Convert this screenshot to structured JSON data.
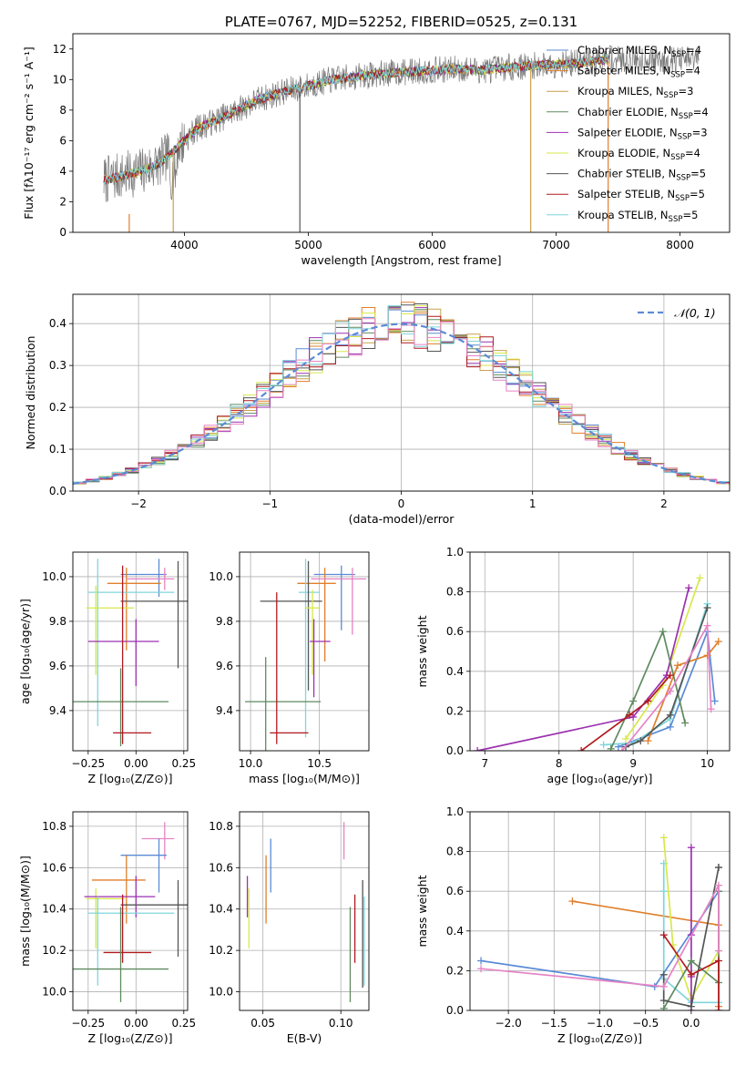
{
  "chart_data": [
    {
      "id": "spectrum",
      "type": "line",
      "title": "PLATE=0767, MJD=52252, FIBERID=0525, z=0.131",
      "xlabel": "wavelength [Angstrom, rest frame]",
      "ylabel": "Flux [fλ10⁻¹⁷ erg cm⁻² s⁻¹ A⁻¹]",
      "xlim": [
        3100,
        8400
      ],
      "ylim": [
        0,
        13
      ],
      "xticks": [
        4000,
        5000,
        6000,
        7000,
        8000
      ],
      "yticks": [
        0,
        2,
        4,
        6,
        8,
        10,
        12
      ],
      "grid": false,
      "legend_position": "right",
      "continuum": {
        "x": [
          3350,
          3500,
          3650,
          3800,
          3950,
          4100,
          4250,
          4400,
          4600,
          4800,
          5000,
          5200,
          5400,
          5600,
          5800,
          6000,
          6200,
          6400,
          6600,
          6800,
          7000,
          7200,
          7400
        ],
        "y": [
          3.4,
          3.7,
          4.0,
          4.5,
          5.6,
          6.8,
          7.3,
          7.9,
          8.7,
          9.2,
          9.6,
          10.0,
          10.2,
          10.4,
          10.5,
          10.6,
          10.7,
          10.6,
          10.8,
          10.9,
          11.0,
          11.1,
          11.3
        ]
      },
      "data_range": [
        3350,
        8150
      ],
      "legend": [
        {
          "label": "Chabrier MILES, N",
          "sub": "SSP",
          "suffix": "=4",
          "color": "#5b8bd6"
        },
        {
          "label": "Salpeter MILES, N",
          "sub": "SSP",
          "suffix": "=4",
          "color": "#e07f2b"
        },
        {
          "label": "Kroupa MILES, N",
          "sub": "SSP",
          "suffix": "=3",
          "color": "#c9a14a"
        },
        {
          "label": "Chabrier ELODIE, N",
          "sub": "SSP",
          "suffix": "=4",
          "color": "#5f8a5f"
        },
        {
          "label": "Salpeter ELODIE, N",
          "sub": "SSP",
          "suffix": "=3",
          "color": "#9b30b0"
        },
        {
          "label": "Kroupa ELODIE, N",
          "sub": "SSP",
          "suffix": "=4",
          "color": "#d7e84a"
        },
        {
          "label": "Chabrier STELIB, N",
          "sub": "SSP",
          "suffix": "=5",
          "color": "#555555"
        },
        {
          "label": "Salpeter STELIB, N",
          "sub": "SSP",
          "suffix": "=5",
          "color": "#b0191f"
        },
        {
          "label": "Kroupa STELIB, N",
          "sub": "SSP",
          "suffix": "=5",
          "color": "#7fd6dc"
        }
      ]
    },
    {
      "id": "residuals",
      "type": "histogram",
      "xlabel": "(data-model)/error",
      "ylabel": "Normed distribution",
      "xlim": [
        -2.5,
        2.5
      ],
      "ylim": [
        0,
        0.47
      ],
      "xticks": [
        -2,
        -1,
        0,
        1,
        2
      ],
      "yticks": [
        0.0,
        0.1,
        0.2,
        0.3,
        0.4
      ],
      "grid": true,
      "legend_position": "top-right",
      "reference": {
        "label": "𝒩(0, 1)",
        "color": "#5b8bd6",
        "style": "dashed",
        "mu": 0,
        "sigma": 1
      },
      "bin_width": 0.1
    },
    {
      "id": "age-vs-Z",
      "type": "errorbar",
      "xlabel": "Z [log₁₀(Z/Z⊙)]",
      "ylabel": "age  [log₁₀(age/yr)]",
      "xlim": [
        -0.33,
        0.27
      ],
      "ylim": [
        9.22,
        10.11
      ],
      "xticks": [
        -0.25,
        0.0,
        0.25
      ],
      "xticklabels": [
        "−0.25",
        "0.00",
        "0.25"
      ],
      "yticks": [
        9.4,
        9.6,
        9.8,
        10.0
      ],
      "grid": true,
      "points": [
        {
          "color": "#5b8bd6",
          "x": 0.12,
          "xerr": [
            0.2,
            0.04
          ],
          "y": 10.01,
          "yerr": [
            0.1,
            0.07
          ]
        },
        {
          "color": "#e07f2b",
          "x": -0.05,
          "xerr": [
            0.1,
            0.18
          ],
          "y": 9.97,
          "yerr": [
            0.3,
            0.07
          ]
        },
        {
          "color": "#e683c5",
          "x": 0.15,
          "xerr": [
            0.2,
            0.05
          ],
          "y": 9.99,
          "yerr": [
            0.05,
            0.05
          ]
        },
        {
          "color": "#7fd6dc",
          "x": -0.2,
          "xerr": [
            0.05,
            0.4
          ],
          "y": 9.93,
          "yerr": [
            0.6,
            0.15
          ]
        },
        {
          "color": "#555555",
          "x": 0.22,
          "xerr": [
            0.3,
            0.05
          ],
          "y": 9.89,
          "yerr": [
            0.3,
            0.18
          ]
        },
        {
          "color": "#d7e84a",
          "x": -0.21,
          "xerr": [
            0.05,
            0.2
          ],
          "y": 9.86,
          "yerr": [
            0.3,
            0.1
          ]
        },
        {
          "color": "#9b30b0",
          "x": 0.0,
          "xerr": [
            0.25,
            0.12
          ],
          "y": 9.71,
          "yerr": [
            0.2,
            0.1
          ]
        },
        {
          "color": "#5f8a5f",
          "x": -0.08,
          "xerr": [
            0.26,
            0.25
          ],
          "y": 9.44,
          "yerr": [
            0.2,
            0.15
          ]
        },
        {
          "color": "#b0191f",
          "x": -0.07,
          "xerr": [
            0.05,
            0.15
          ],
          "y": 9.3,
          "yerr": [
            0.05,
            0.75
          ]
        }
      ]
    },
    {
      "id": "age-vs-mass",
      "type": "errorbar",
      "xlabel": "mass [log₁₀(M/M⊙)]",
      "ylabel": "",
      "xlim": [
        9.92,
        10.86
      ],
      "ylim": [
        9.22,
        10.11
      ],
      "xticks": [
        10.0,
        10.5
      ],
      "xticklabels": [
        "10.0",
        "10.5"
      ],
      "yticks": [
        9.4,
        9.6,
        9.8,
        10.0
      ],
      "grid": true,
      "points": [
        {
          "color": "#5b8bd6",
          "x": 10.66,
          "xerr": [
            0.2,
            0.1
          ],
          "y": 10.01,
          "yerr": [
            0.25,
            0.04
          ]
        },
        {
          "color": "#e07f2b",
          "x": 10.54,
          "xerr": [
            0.2,
            0.08
          ],
          "y": 9.97,
          "yerr": [
            0.35,
            0.07
          ]
        },
        {
          "color": "#e683c5",
          "x": 10.74,
          "xerr": [
            0.3,
            0.1
          ],
          "y": 9.99,
          "yerr": [
            0.25,
            0.05
          ]
        },
        {
          "color": "#7fd6dc",
          "x": 10.4,
          "xerr": [
            0.05,
            0.1
          ],
          "y": 9.93,
          "yerr": [
            0.65,
            0.15
          ]
        },
        {
          "color": "#555555",
          "x": 10.42,
          "xerr": [
            0.35,
            0.1
          ],
          "y": 9.89,
          "yerr": [
            0.4,
            0.18
          ]
        },
        {
          "color": "#d7e84a",
          "x": 10.45,
          "xerr": [
            0.05,
            0.05
          ],
          "y": 9.86,
          "yerr": [
            0.3,
            0.08
          ]
        },
        {
          "color": "#9b30b0",
          "x": 10.46,
          "xerr": [
            0.03,
            0.12
          ],
          "y": 9.71,
          "yerr": [
            0.25,
            0.1
          ]
        },
        {
          "color": "#5f8a5f",
          "x": 10.11,
          "xerr": [
            0.15,
            0.4
          ],
          "y": 9.44,
          "yerr": [
            0.35,
            0.2
          ]
        },
        {
          "color": "#b0191f",
          "x": 10.19,
          "xerr": [
            0.05,
            0.23
          ],
          "y": 9.3,
          "yerr": [
            0.05,
            0.63
          ]
        }
      ]
    },
    {
      "id": "weight-vs-age",
      "type": "line",
      "xlabel": "age  [log₁₀(age/yr)]",
      "ylabel": "mass weight",
      "xlim": [
        6.8,
        10.3
      ],
      "ylim": [
        0,
        1
      ],
      "xticks": [
        7,
        8,
        9,
        10
      ],
      "yticks": [
        0.0,
        0.2,
        0.4,
        0.6,
        0.8,
        1.0
      ],
      "grid": true,
      "series": [
        {
          "color": "#5b8bd6",
          "x": [
            8.8,
            9.5,
            10.0,
            10.1
          ],
          "y": [
            0.02,
            0.12,
            0.6,
            0.25
          ]
        },
        {
          "color": "#e07f2b",
          "x": [
            9.2,
            9.6,
            10.0,
            10.15
          ],
          "y": [
            0.05,
            0.43,
            0.48,
            0.55
          ]
        },
        {
          "color": "#7fd6dc",
          "x": [
            8.6,
            9.0,
            9.5,
            10.0
          ],
          "y": [
            0.03,
            0.04,
            0.16,
            0.74
          ]
        },
        {
          "color": "#d7e84a",
          "x": [
            8.9,
            9.4,
            9.9
          ],
          "y": [
            0.06,
            0.33,
            0.87
          ]
        },
        {
          "color": "#9b30b0",
          "x": [
            6.9,
            9.0,
            9.45,
            9.75
          ],
          "y": [
            0.0,
            0.17,
            0.38,
            0.82
          ]
        },
        {
          "color": "#5f8a5f",
          "x": [
            8.7,
            9.0,
            9.4,
            9.7
          ],
          "y": [
            0.01,
            0.25,
            0.6,
            0.14
          ]
        },
        {
          "color": "#555555",
          "x": [
            8.9,
            9.1,
            9.5,
            10.0
          ],
          "y": [
            0.02,
            0.05,
            0.18,
            0.72
          ]
        },
        {
          "color": "#b0191f",
          "x": [
            8.3,
            8.95,
            9.2,
            9.5
          ],
          "y": [
            0.0,
            0.18,
            0.25,
            0.38
          ]
        },
        {
          "color": "#e683c5",
          "x": [
            8.85,
            9.5,
            10.0,
            10.05
          ],
          "y": [
            0.0,
            0.3,
            0.63,
            0.21
          ]
        }
      ]
    },
    {
      "id": "mass-vs-Z",
      "type": "errorbar",
      "xlabel": "Z [log₁₀(Z/Z⊙)]",
      "ylabel": "mass [log₁₀(M/M⊙)]",
      "xlim": [
        -0.33,
        0.27
      ],
      "ylim": [
        9.91,
        10.87
      ],
      "xticks": [
        -0.25,
        0.0,
        0.25
      ],
      "xticklabels": [
        "−0.25",
        "0.00",
        "0.25"
      ],
      "yticks": [
        10.0,
        10.2,
        10.4,
        10.6,
        10.8
      ],
      "grid": true,
      "points": [
        {
          "color": "#e683c5",
          "x": 0.15,
          "xerr": [
            0.12,
            0.05
          ],
          "y": 10.74,
          "yerr": [
            0.1,
            0.08
          ]
        },
        {
          "color": "#5b8bd6",
          "x": 0.12,
          "xerr": [
            0.2,
            0.04
          ],
          "y": 10.66,
          "yerr": [
            0.18,
            0.08
          ]
        },
        {
          "color": "#e07f2b",
          "x": -0.05,
          "xerr": [
            0.18,
            0.1
          ],
          "y": 10.54,
          "yerr": [
            0.21,
            0.12
          ]
        },
        {
          "color": "#d7e84a",
          "x": -0.21,
          "xerr": [
            0.05,
            0.15
          ],
          "y": 10.45,
          "yerr": [
            0.24,
            0.05
          ]
        },
        {
          "color": "#9b30b0",
          "x": 0.0,
          "xerr": [
            0.27,
            0.1
          ],
          "y": 10.46,
          "yerr": [
            0.1,
            0.1
          ]
        },
        {
          "color": "#555555",
          "x": 0.22,
          "xerr": [
            0.3,
            0.05
          ],
          "y": 10.42,
          "yerr": [
            0.25,
            0.12
          ]
        },
        {
          "color": "#7fd6dc",
          "x": -0.2,
          "xerr": [
            0.05,
            0.4
          ],
          "y": 10.38,
          "yerr": [
            0.35,
            0.08
          ]
        },
        {
          "color": "#b0191f",
          "x": -0.07,
          "xerr": [
            0.1,
            0.15
          ],
          "y": 10.19,
          "yerr": [
            0.05,
            0.28
          ]
        },
        {
          "color": "#5f8a5f",
          "x": -0.08,
          "xerr": [
            0.26,
            0.25
          ],
          "y": 10.11,
          "yerr": [
            0.16,
            0.3
          ]
        }
      ]
    },
    {
      "id": "mass-vs-EBV",
      "type": "errorbar",
      "xlabel": "E(B-V)",
      "ylabel": "",
      "xlim": [
        0.035,
        0.118
      ],
      "ylim": [
        9.91,
        10.87
      ],
      "xticks": [
        0.05,
        0.1
      ],
      "xticklabels": [
        "0.05",
        "0.10"
      ],
      "yticks": [
        10.0,
        10.2,
        10.4,
        10.6,
        10.8
      ],
      "grid": true,
      "points": [
        {
          "color": "#e683c5",
          "x": 0.102,
          "y": 10.74,
          "yerr": [
            0.1,
            0.08
          ]
        },
        {
          "color": "#5b8bd6",
          "x": 0.055,
          "y": 10.66,
          "yerr": [
            0.18,
            0.08
          ]
        },
        {
          "color": "#e07f2b",
          "x": 0.052,
          "y": 10.54,
          "yerr": [
            0.21,
            0.12
          ]
        },
        {
          "color": "#d7e84a",
          "x": 0.041,
          "y": 10.45,
          "yerr": [
            0.24,
            0.05
          ]
        },
        {
          "color": "#9b30b0",
          "x": 0.04,
          "y": 10.46,
          "yerr": [
            0.1,
            0.1
          ]
        },
        {
          "color": "#555555",
          "x": 0.114,
          "y": 10.42,
          "yerr": [
            0.4,
            0.12
          ]
        },
        {
          "color": "#7fd6dc",
          "x": 0.115,
          "y": 10.38,
          "yerr": [
            0.35,
            0.08
          ]
        },
        {
          "color": "#b0191f",
          "x": 0.109,
          "y": 10.19,
          "yerr": [
            0.05,
            0.28
          ]
        },
        {
          "color": "#5f8a5f",
          "x": 0.106,
          "y": 10.11,
          "yerr": [
            0.16,
            0.3
          ]
        }
      ]
    },
    {
      "id": "weight-vs-Z",
      "type": "line",
      "xlabel": "Z [log₁₀(Z/Z⊙)]",
      "ylabel": "mass weight",
      "xlim": [
        -2.42,
        0.42
      ],
      "ylim": [
        0,
        1
      ],
      "xticks": [
        -2.0,
        -1.5,
        -1.0,
        -0.5,
        0.0
      ],
      "xticklabels": [
        "−2.0",
        "−1.5",
        "−1.0",
        "−0.5",
        "0.0"
      ],
      "yticks": [
        0.0,
        0.2,
        0.4,
        0.6,
        0.8,
        1.0
      ],
      "grid": true,
      "series": [
        {
          "color": "#5b8bd6",
          "x": [
            -2.3,
            -0.4,
            0.3
          ],
          "y": [
            0.25,
            0.12,
            0.6
          ]
        },
        {
          "color": "#e07f2b",
          "x": [
            -1.3,
            0.3,
            0.3
          ],
          "y": [
            0.55,
            0.43,
            0.02
          ]
        },
        {
          "color": "#7fd6dc",
          "x": [
            -0.3,
            -0.3,
            -0.3,
            0.0,
            0.3
          ],
          "y": [
            0.74,
            0.6,
            0.16,
            0.04,
            0.04
          ]
        },
        {
          "color": "#d7e84a",
          "x": [
            -0.3,
            -0.2,
            0.0,
            0.3
          ],
          "y": [
            0.87,
            0.33,
            0.06,
            0.3
          ]
        },
        {
          "color": "#9b30b0",
          "x": [
            0.0,
            0.0,
            0.0,
            0.0
          ],
          "y": [
            0.82,
            0.17,
            0.38,
            0.0
          ]
        },
        {
          "color": "#5f8a5f",
          "x": [
            -0.3,
            0.0,
            0.3,
            0.3
          ],
          "y": [
            0.01,
            0.25,
            0.14,
            0.6
          ]
        },
        {
          "color": "#555555",
          "x": [
            -0.3,
            -0.3,
            0.0,
            0.3,
            0.3
          ],
          "y": [
            0.18,
            0.05,
            0.02,
            0.72,
            0.72
          ]
        },
        {
          "color": "#b0191f",
          "x": [
            -0.3,
            0.0,
            0.3,
            0.3
          ],
          "y": [
            0.38,
            0.18,
            0.25,
            0.0
          ]
        },
        {
          "color": "#e683c5",
          "x": [
            -2.3,
            -0.3,
            0.3,
            0.3
          ],
          "y": [
            0.21,
            0.12,
            0.63,
            0.3
          ]
        }
      ]
    }
  ]
}
